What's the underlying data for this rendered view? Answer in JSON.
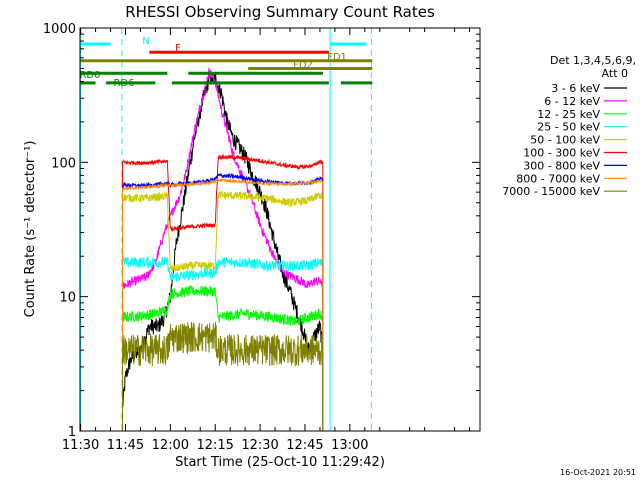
{
  "chart_data": {
    "type": "line",
    "title": "RHESSI Observing Summary Count Rates",
    "xlabel": "Start Time (25-Oct-10 11:29:42)",
    "ylabel": "Count Rate (s⁻¹ detector⁻¹)",
    "yscale": "log",
    "ylim": [
      1,
      1000
    ],
    "xlim_minutes": [
      -0.2,
      133.5
    ],
    "x_ticks": [
      {
        "label": "11:30",
        "t": 0
      },
      {
        "label": "11:45",
        "t": 15
      },
      {
        "label": "12:00",
        "t": 30
      },
      {
        "label": "12:15",
        "t": 45
      },
      {
        "label": "12:30",
        "t": 60
      },
      {
        "label": "12:45",
        "t": 75
      },
      {
        "label": "13:00",
        "t": 90
      }
    ],
    "y_ticks": [
      {
        "label": "1",
        "v": 1
      },
      {
        "label": "10",
        "v": 10
      },
      {
        "label": "100",
        "v": 100
      },
      {
        "label": "1000",
        "v": 1000
      }
    ],
    "legend_header": [
      "Det 1,3,4,5,6,9,",
      "Att 0"
    ],
    "legend_position": "right",
    "series": [
      {
        "name": "3 - 6 keV",
        "color": "#000000",
        "points": [
          [
            14,
            1.5
          ],
          [
            15,
            2.5
          ],
          [
            16,
            3
          ],
          [
            17,
            3.5
          ],
          [
            20,
            4
          ],
          [
            23,
            6
          ],
          [
            26,
            6
          ],
          [
            28,
            7
          ],
          [
            30,
            10
          ],
          [
            32,
            25
          ],
          [
            35,
            60
          ],
          [
            38,
            150
          ],
          [
            41,
            300
          ],
          [
            43,
            420
          ],
          [
            45,
            420
          ],
          [
            47,
            330
          ],
          [
            49,
            200
          ],
          [
            51,
            150
          ],
          [
            53,
            130
          ],
          [
            55,
            110
          ],
          [
            57,
            85
          ],
          [
            60,
            60
          ],
          [
            62,
            45
          ],
          [
            64,
            30
          ],
          [
            66,
            20
          ],
          [
            68,
            14
          ],
          [
            70,
            11
          ],
          [
            72,
            8
          ],
          [
            74,
            6
          ],
          [
            76,
            4
          ],
          [
            78,
            5
          ],
          [
            80,
            6
          ],
          [
            81,
            4
          ]
        ],
        "noise": 0.06
      },
      {
        "name": "6 - 12 keV",
        "color": "#ff00ff",
        "points": [
          [
            14,
            12
          ],
          [
            18,
            13
          ],
          [
            22,
            14
          ],
          [
            25,
            18
          ],
          [
            28,
            30
          ],
          [
            31,
            45
          ],
          [
            33,
            55
          ],
          [
            35,
            80
          ],
          [
            38,
            170
          ],
          [
            41,
            320
          ],
          [
            43,
            480
          ],
          [
            45,
            400
          ],
          [
            47,
            250
          ],
          [
            49,
            170
          ],
          [
            50,
            140
          ],
          [
            51,
            115
          ],
          [
            53,
            90
          ],
          [
            55,
            70
          ],
          [
            57,
            55
          ],
          [
            59,
            40
          ],
          [
            61,
            30
          ],
          [
            63,
            24
          ],
          [
            65,
            19
          ],
          [
            68,
            15
          ],
          [
            71,
            14
          ],
          [
            74,
            13
          ],
          [
            76,
            12
          ],
          [
            78,
            13
          ],
          [
            80,
            13
          ],
          [
            81,
            12
          ]
        ],
        "noise": 0.035
      },
      {
        "name": "12 - 25 keV",
        "color": "#00ff00",
        "points": [
          [
            14,
            7
          ],
          [
            20,
            7.2
          ],
          [
            25,
            7.5
          ],
          [
            29,
            8
          ],
          [
            30,
            10.5
          ],
          [
            37,
            11
          ],
          [
            42,
            11
          ],
          [
            45,
            11
          ],
          [
            46,
            7
          ],
          [
            55,
            7.5
          ],
          [
            65,
            7
          ],
          [
            72,
            6.5
          ],
          [
            76,
            7
          ],
          [
            80,
            7.5
          ],
          [
            81,
            7
          ]
        ],
        "noise": 0.04
      },
      {
        "name": "25 - 50 keV",
        "color": "#00ffff",
        "points": [
          [
            14,
            18
          ],
          [
            20,
            18
          ],
          [
            25,
            18
          ],
          [
            29,
            18
          ],
          [
            30,
            14
          ],
          [
            37,
            14.5
          ],
          [
            42,
            15
          ],
          [
            45,
            15
          ],
          [
            46,
            18
          ],
          [
            55,
            18
          ],
          [
            62,
            17
          ],
          [
            70,
            17
          ],
          [
            76,
            17
          ],
          [
            80,
            18
          ],
          [
            81,
            17
          ]
        ],
        "noise": 0.04
      },
      {
        "name": "50 - 100 keV",
        "color": "#cccc00",
        "points": [
          [
            14,
            55
          ],
          [
            20,
            54
          ],
          [
            25,
            55
          ],
          [
            29,
            56
          ],
          [
            30,
            16
          ],
          [
            37,
            17
          ],
          [
            42,
            17
          ],
          [
            45,
            17
          ],
          [
            46,
            57
          ],
          [
            55,
            56
          ],
          [
            62,
            54
          ],
          [
            70,
            50
          ],
          [
            76,
            52
          ],
          [
            80,
            57
          ],
          [
            81,
            55
          ]
        ],
        "noise": 0.03
      },
      {
        "name": "100 - 300 keV",
        "color": "#ff0000",
        "points": [
          [
            14,
            100
          ],
          [
            20,
            99
          ],
          [
            25,
            100
          ],
          [
            29,
            102
          ],
          [
            30,
            32
          ],
          [
            37,
            33
          ],
          [
            42,
            34
          ],
          [
            45,
            34
          ],
          [
            46,
            110
          ],
          [
            53,
            108
          ],
          [
            60,
            103
          ],
          [
            68,
            95
          ],
          [
            74,
            92
          ],
          [
            78,
            95
          ],
          [
            80,
            102
          ],
          [
            81,
            98
          ]
        ],
        "noise": 0.015
      },
      {
        "name": "300 - 800 keV",
        "color": "#0000ff",
        "points": [
          [
            14,
            68
          ],
          [
            20,
            67
          ],
          [
            25,
            68
          ],
          [
            29,
            70
          ],
          [
            30,
            68
          ],
          [
            37,
            70
          ],
          [
            42,
            72
          ],
          [
            45,
            75
          ],
          [
            46,
            80
          ],
          [
            53,
            78
          ],
          [
            60,
            73
          ],
          [
            68,
            70
          ],
          [
            74,
            70
          ],
          [
            78,
            72
          ],
          [
            80,
            76
          ],
          [
            81,
            74
          ]
        ],
        "noise": 0.015
      },
      {
        "name": "800 - 7000 keV",
        "color": "#ff8c00",
        "points": [
          [
            14,
            64
          ],
          [
            20,
            65
          ],
          [
            25,
            66
          ],
          [
            29,
            68
          ],
          [
            30,
            67
          ],
          [
            37,
            69
          ],
          [
            42,
            70
          ],
          [
            45,
            72
          ],
          [
            46,
            74
          ],
          [
            53,
            72
          ],
          [
            60,
            70
          ],
          [
            68,
            69
          ],
          [
            74,
            70
          ],
          [
            78,
            71
          ],
          [
            80,
            73
          ],
          [
            81,
            72
          ]
        ],
        "noise": 0.01
      },
      {
        "name": "7000 - 15000 keV",
        "color": "#808000",
        "points": [
          [
            14,
            4
          ],
          [
            20,
            4
          ],
          [
            25,
            4
          ],
          [
            29,
            4
          ],
          [
            30,
            5
          ],
          [
            37,
            5
          ],
          [
            42,
            5
          ],
          [
            45,
            5
          ],
          [
            46,
            4
          ],
          [
            55,
            4
          ],
          [
            62,
            4
          ],
          [
            70,
            4
          ],
          [
            76,
            4
          ],
          [
            80,
            4
          ],
          [
            81,
            4
          ]
        ],
        "noise": 0.12
      }
    ],
    "flag_bars": [
      {
        "label": "N",
        "color": "#00ffff",
        "y_value": 760,
        "start": 0,
        "end": 10,
        "start2": 83.5,
        "end2": 95.5
      },
      {
        "label": "F",
        "color": "#ff0000",
        "y_value": 660,
        "start": 23,
        "end": 83
      },
      {
        "label": "FD1",
        "color": "#808000",
        "y_value": 570,
        "start": 0,
        "end": 97.5
      },
      {
        "label": "FD2",
        "color": "#808000",
        "y_value": 500,
        "start": 56,
        "end": 97.5
      },
      {
        "label": "RD0",
        "color": "#008000",
        "y_value": 460,
        "start": 0,
        "end": 29,
        "start2": 36,
        "end2": 81
      },
      {
        "label": "RD6",
        "color": "#008000",
        "y_value": 390,
        "start": 0,
        "end": 5,
        "start3": 8.5,
        "end3": 25,
        "start2": 30.5,
        "end2": 83,
        "start4": 87,
        "end4": 97.5
      }
    ],
    "vertical_lines": [
      {
        "t": 0,
        "color": "#00ffff",
        "style": "solid"
      },
      {
        "t": 13.8,
        "color": "#00ffff",
        "style": "dashed"
      },
      {
        "t": 83.4,
        "color": "#00ffff",
        "style": "solid"
      },
      {
        "t": 97.2,
        "color": "#00ffff",
        "style": "dashed"
      }
    ],
    "timestamp": "16-Oct-2021 20:51"
  }
}
